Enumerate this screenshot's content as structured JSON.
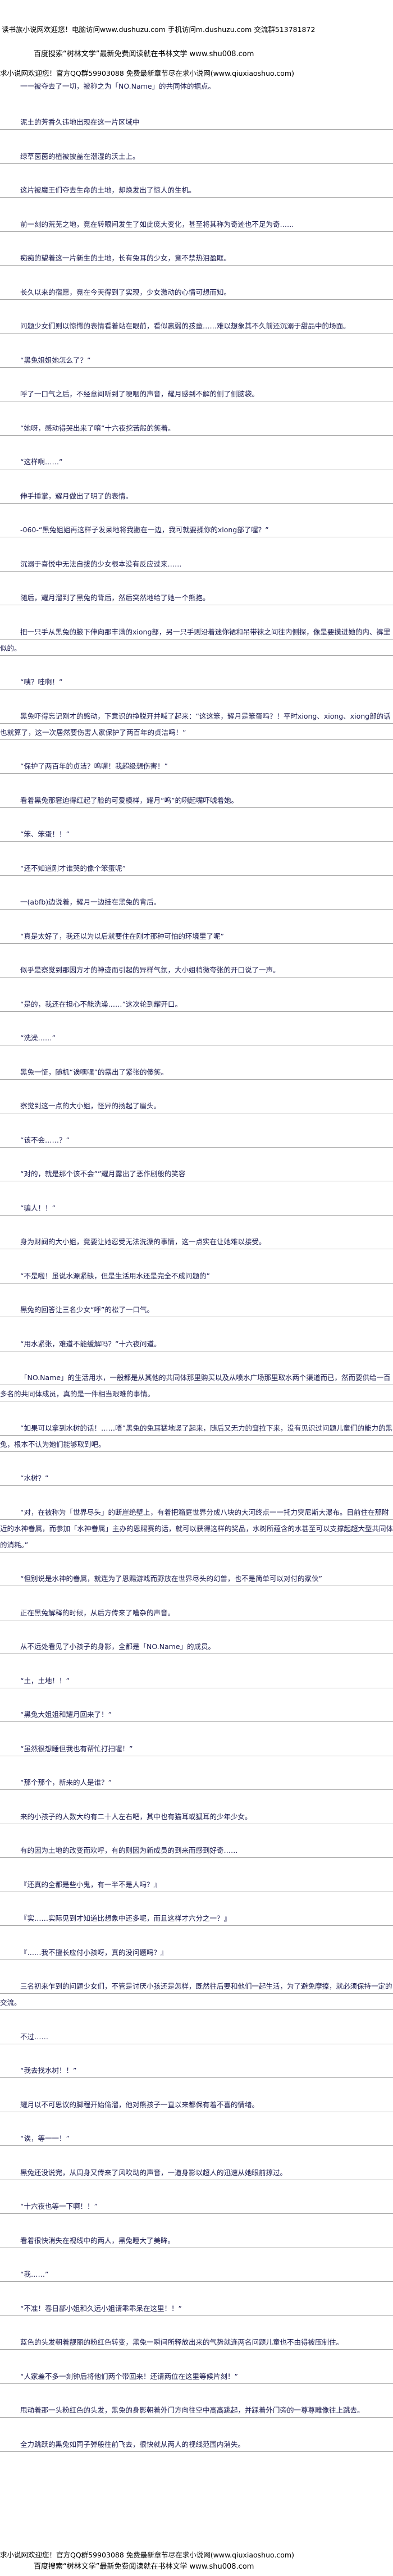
{
  "header": {
    "lines": [
      "读书族小说网欢迎您！电脑访问www.dushuzu.com 手机访问m.dushuzu.com 交流群513781872",
      "百度搜索“树林文学”最新免费阅读就在书林文学 www.shu008.com",
      "求小说网欢迎您！官方QQ群59903088 免费最新章节尽在求小说网(www.qiuxiaoshuo.com)"
    ],
    "intro": "一一被夺去了一切，被称之为「NO.Name」的共同体的据点。"
  },
  "paragraphs": [
    "泥土的芳香久违地出现在这一片区域中",
    "绿草茵茵的植被披盖在潮湿的沃土上。",
    "这片被魔王们夺去生命的土地，却焕发出了惊人的生机。",
    "前一刻的荒芜之地，竟在转眼间发生了如此庞大变化，甚至将其称为奇迹也不足为奇……",
    "痴痴的望着这一片新生的土地，长有兔耳的少女，竟不禁热泪盈眶。",
    "长久以来的宿愿，竟在今天得到了实现，少女激动的心情可想而知。",
    "问题少女们则以惊愕的表情看着站在眼前，看似羸弱的孩童……难以想象其不久前还沉溺于甜品中的场面。",
    "“黑兔姐姐她怎么了？”",
    "呼了一口气之后，不经意间听到了哽咽的声音，耀月感到不解的侧了侧脑袋。",
    "“她呀，感动得哭出来了唷”十六夜挖苦般的笑着。",
    "“这样啊……”",
    "伸手捶掌，耀月做出了明了的表情。",
    "-060-“黑兔姐姐再这样子发呆地将我撇在一边，我可就要揉你的xiong部了喔？”",
    "沉溺于喜悦中无法自拔的少女根本没有反应过来……",
    "随后，耀月溜到了黑兔的背后，然后突然地给了她一个熊抱。",
    "把一只手从黑兔的腋下伸向那丰满的xiong部，另一只手则沿着迷你裙和吊带袜之间往内侧探，像是要摸进她的内、裤里似的。",
    "“咦？哇啊！”",
    "黑兔吓得忘记刚才的感动，下意识的挣脱开并喊了起来：“这这笨，耀月是笨蛋吗？！平时xiong、xiong、xiong部的话也就算了，这一次居然要伤害人家保护了两百年的贞洁吗！”",
    "“保护了两百年的贞洁？呜喔！我超级想伤害！”",
    "看着黑兔那窘迫得红起了脸的可爱模样，耀月“呜”的咧起嘴吓唬着她。",
    "“笨、笨蛋！！”",
    "“还不知道刚才谁哭的像个笨蛋呢”",
    "一(abfb)边说着，耀月一边挂在黑兔的背后。",
    "“真是太好了，我还以为以后就要住在刚才那种可怕的环境里了呢”",
    "似乎是察觉到那因方才的神迹而引起的异样气氛，大小姐稍微夸张的开口说了一声。",
    "“是的，我还在担心不能洗澡……”这次轮到耀开口。",
    "“洗澡……”",
    "黑兔一怔，随机“诶嘿嘿”的露出了紧张的傻笑。",
    "察觉到这一点的大小姐，怪异的扬起了眉头。",
    "“该不会……？”",
    "“对的，就是那个该不会””耀月露出了恶作剧般的笑容",
    "“骗人！！”",
    "身为财阀的大小姐，竟要让她忍受无法洗澡的事情，这一点实在让她难以接受。",
    "“不是啦！虽说水源紧缺，但是生活用水还是完全不成问题的”",
    "黑兔的回答让三名少女“呼”的松了一口气。",
    "“用水紧张，难道不能缓解吗？”十六夜问道。",
    "「NO.Name」的生活用水，一般都是从其他的共同体那里购买以及从喷水广场那里取水两个渠道而已，然而要供给一百多名的共同体成员，真的是一件相当艰难的事情。",
    "“如果可以拿到水树的话！……唔”黑兔的兔耳猛地竖了起来，随后又无力的耷拉下来，没有见识过问题儿童们的能力的黑兔，根本不认为她们能够取到吧。",
    "“水树？”",
    "“对，在被称为「世界尽头」的断崖绝壁上，有着把箱庭世界分成八块的大河终点一一托力突尼斯大瀑布。目前住在那附近的水神眷属，而参加「水神眷属」主办的恩赐赛的话，就可以获得这样的奖品，水树所蕴含的水甚至可以支撑起超大型共同体的消耗。”",
    "“但别说是水神的眷属，就连为了恩赐游戏而野放在世界尽头的幻兽，也不是简单可以对付的家伙”",
    "正在黑兔解释的时候，从后方传来了嘈杂的声音。",
    "从不远处看见了小孩子的身影，全都是「NO.Name」的成员。",
    "“土，土地！！”",
    "“黑兔大姐姐和耀月回来了！”",
    "“虽然很想睡但我也有帮忙打扫喔！”",
    "“那个那个，新来的人是谁？”",
    "来的小孩子的人数大约有二十人左右吧，其中也有猫耳或狐耳的少年少女。",
    "有的因为土地的改变而欢呼，有的则因为新成员的到来而感到好奇……",
    "『还真的全都是些小鬼，有一半不是人吗？』",
    "『实……实际见到才知道比想象中还多呢，而且这样才六分之一？』",
    "『……我不擅长应付小孩呀，真的没问题吗？』",
    "三名初来乍到的问题少女们，不管是讨厌小孩还是怎样，既然往后要和他们一起生活，为了避免摩擦，就必须保持一定的交流。",
    "不过……",
    "“我去找水树！！”",
    "耀月以不可思议的脚程开始偷溜，他对熊孩子一直以来都保有着不喜的情绪。",
    "“诶，等一一！”",
    "黑兔还没说完，从周身又传来了风吹动的声音，一道身影以超人的迅速从她眼前掠过。",
    "“十六夜也等一下啊！！”",
    "看着很快消失在视线中的两人，黑兔瞪大了美眸。",
    "“我……”",
    "“不准！春日部小姐和久远小姐请乖乖呆在这里！！”",
    "蓝色的头发朝着靓丽的粉红色转变，黑兔一瞬间所释放出来的气势就连两名问题儿童也不由得被压制住。",
    "“人家差不多一刻钟后将他们两个带回来！还请两位在这里等候片刻！”",
    "甩动着那一头粉红色的头发，黑兔的身影朝着外门方向往空中高高跳起，并踩着外门旁的一尊尊雕像往上跳去。",
    "全力跳跃的黑兔如同子弹般往前飞去，很快就从两人的视线范围内消失。"
  ],
  "footer": {
    "lines": [
      "求小说网欢迎您！官方QQ群59903088 免费最新章节尽在求小说网(www.qiuxiaoshuo.com)",
      "百度搜索“树林文学”最新免费阅读就在书林文学 www.shu008.com"
    ]
  },
  "colors": {
    "text": "#1c1c50",
    "rule": "#a8a8a8",
    "header": "#000000"
  }
}
